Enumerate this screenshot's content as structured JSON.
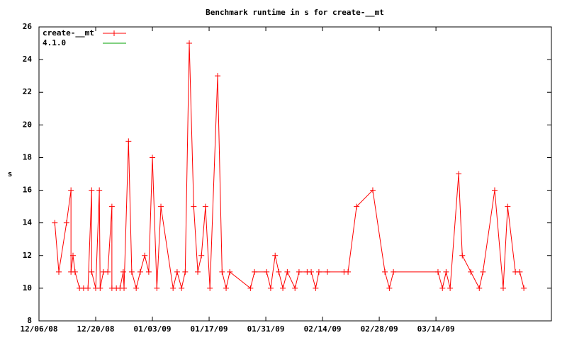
{
  "chart_data": {
    "type": "line",
    "title": "Benchmark runtime in s for create-__mt",
    "y_label": "s",
    "xlim": [
      0,
      126.5
    ],
    "ylim": [
      8,
      26
    ],
    "xticks": [
      {
        "value": 0,
        "label": "12/06/08"
      },
      {
        "value": 14,
        "label": "12/20/08"
      },
      {
        "value": 28,
        "label": "01/03/09"
      },
      {
        "value": 42,
        "label": "01/17/09"
      },
      {
        "value": 56,
        "label": "01/31/09"
      },
      {
        "value": 70,
        "label": "02/14/09"
      },
      {
        "value": 84,
        "label": "02/28/09"
      },
      {
        "value": 98,
        "label": "03/14/09"
      }
    ],
    "yticks": [
      8,
      10,
      12,
      14,
      16,
      18,
      20,
      22,
      24,
      26
    ],
    "legend": "top-left",
    "series": [
      {
        "name": "create-__mt",
        "color": "#ff0000",
        "markers": true,
        "x": [
          3.9,
          4.9,
          6.8,
          7.9,
          7.9,
          8.4,
          8.9,
          10,
          11,
          12.1,
          13,
          13,
          14,
          14.9,
          15.1,
          15.9,
          17,
          18,
          18,
          19.1,
          20,
          20.8,
          21,
          22.1,
          22.9,
          24,
          25,
          26.1,
          27.1,
          28,
          29.1,
          30.1,
          33.1,
          34.1,
          35.2,
          36.1,
          37.1,
          38.2,
          39.2,
          40.1,
          41.1,
          42.2,
          44.1,
          45.2,
          46.2,
          47.1,
          52.2,
          53.2,
          56.2,
          57.2,
          58.3,
          59.2,
          60.2,
          61.3,
          63.2,
          64.2,
          66.2,
          67.2,
          68.3,
          69.1,
          71.2,
          75.3,
          76.3,
          78.4,
          82.4,
          85.4,
          86.5,
          87.5,
          98.5,
          99.6,
          100.5,
          101.5,
          103.6,
          104.5,
          106.6,
          108.7,
          109.6,
          112.5,
          114.6,
          115.7,
          117.6,
          118.7,
          119.7
        ],
        "values": [
          14,
          11,
          14,
          16,
          11,
          12,
          11,
          10,
          10,
          10,
          16,
          11,
          10,
          16,
          10,
          11,
          11,
          15,
          10,
          10,
          10,
          11,
          10,
          19,
          11,
          10,
          11,
          12,
          11,
          18,
          10,
          15,
          10,
          11,
          10,
          11,
          25,
          15,
          11,
          12,
          15,
          10,
          23,
          11,
          10,
          11,
          10,
          11,
          11,
          10,
          12,
          11,
          10,
          11,
          10,
          11,
          11,
          11,
          10,
          11,
          11,
          11,
          11,
          15,
          16,
          11,
          10,
          11,
          11,
          10,
          11,
          10,
          17,
          12,
          11,
          10,
          11,
          16,
          10,
          15,
          11,
          11,
          10
        ]
      },
      {
        "name": "4.1.0",
        "color": "#00a000",
        "markers": false,
        "x": [],
        "values": []
      }
    ]
  }
}
